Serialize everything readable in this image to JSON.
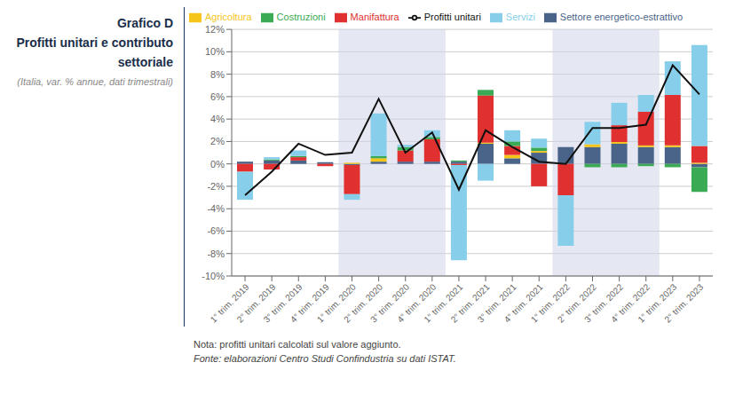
{
  "chart_data": {
    "type": "bar",
    "stacked": true,
    "title": "Grafico D\nProfitti unitari e contributo\nsettoriale",
    "subtitle": "(Italia, var. % annue, dati trimestrali)",
    "categories": [
      "1° trim. 2019",
      "2° trim. 2019",
      "3° trim. 2019",
      "4° trim. 2019",
      "1° trim. 2020",
      "2° trim. 2020",
      "3° trim. 2020",
      "4° trim. 2020",
      "1° trim. 2021",
      "2° trim. 2021",
      "3° trim. 2021",
      "4° trim. 2021",
      "1° trim. 2022",
      "2° trim. 2022",
      "3° trim. 2022",
      "4° trim. 2022",
      "1° trim. 2023",
      "2° trim. 2023"
    ],
    "series": [
      {
        "name": "Settore energetico-estrattivo",
        "type": "bar",
        "color": "#4a6489",
        "values": [
          0.2,
          0.3,
          0.3,
          0.15,
          -0.1,
          0.2,
          0.2,
          0.2,
          0.2,
          1.8,
          0.5,
          1.0,
          1.5,
          1.5,
          1.8,
          1.5,
          1.5,
          -0.3
        ]
      },
      {
        "name": "Agricoltura",
        "type": "bar",
        "color": "#f5c518",
        "values": [
          0.0,
          0.0,
          0.0,
          0.0,
          0.1,
          0.3,
          0.0,
          0.0,
          0.0,
          0.1,
          0.3,
          0.15,
          0.0,
          0.25,
          0.15,
          0.15,
          0.15,
          0.1
        ]
      },
      {
        "name": "Manifattura",
        "type": "bar",
        "color": "#e03030",
        "values": [
          -0.7,
          -0.5,
          0.3,
          -0.2,
          -2.6,
          0.0,
          1.0,
          2.0,
          -0.1,
          4.2,
          0.8,
          -2.0,
          -2.8,
          0.0,
          1.5,
          3.0,
          4.5,
          1.5
        ]
      },
      {
        "name": "Costruzioni",
        "type": "bar",
        "color": "#3aaa55",
        "values": [
          0.0,
          0.1,
          0.1,
          0.0,
          0.0,
          0.2,
          0.3,
          0.2,
          0.1,
          0.5,
          0.4,
          0.3,
          0.0,
          -0.3,
          -0.3,
          -0.2,
          -0.3,
          -2.2
        ]
      },
      {
        "name": "Servizi",
        "type": "bar",
        "color": "#87ceeb",
        "values": [
          -2.5,
          0.2,
          0.5,
          0.0,
          -0.5,
          3.8,
          0.2,
          0.6,
          -8.5,
          -1.5,
          1.0,
          0.8,
          -4.5,
          2.0,
          2.0,
          1.5,
          3.0,
          9.0
        ]
      },
      {
        "name": "Profitti unitari",
        "type": "line",
        "color": "#111111",
        "values": [
          -2.8,
          -0.7,
          1.8,
          0.8,
          1.0,
          5.8,
          1.0,
          2.8,
          -2.3,
          3.0,
          1.5,
          0.2,
          0.0,
          3.2,
          3.2,
          3.5,
          8.8,
          6.2
        ]
      }
    ],
    "shaded_periods": [
      {
        "from": "1° trim. 2020",
        "to": "4° trim. 2020",
        "color": "#d0d5e8"
      },
      {
        "from": "1° trim. 2022",
        "to": "4° trim. 2022",
        "color": "#d0d5e8"
      }
    ],
    "ylim": [
      -10,
      12
    ],
    "yticks": [
      {
        "value": 12,
        "label": "12%"
      },
      {
        "value": 10,
        "label": "10%"
      },
      {
        "value": 8,
        "label": "8%"
      },
      {
        "value": 6,
        "label": "6%"
      },
      {
        "value": 4,
        "label": "4%"
      },
      {
        "value": 2,
        "label": "2%"
      },
      {
        "value": 0,
        "label": "0%"
      },
      {
        "value": -2,
        "label": "-2%"
      },
      {
        "value": -4,
        "label": "-4%"
      },
      {
        "value": -6,
        "label": "-6%"
      },
      {
        "value": -8,
        "label": "-8%"
      },
      {
        "value": -10,
        "label": "-10%"
      }
    ],
    "grid": true,
    "legend": "upper left",
    "notes": [
      "Nota: profitti unitari calcolati sul valore aggiunto.",
      "Fonte: elaborazioni Centro Studi Confindustria su dati ISTAT."
    ]
  }
}
